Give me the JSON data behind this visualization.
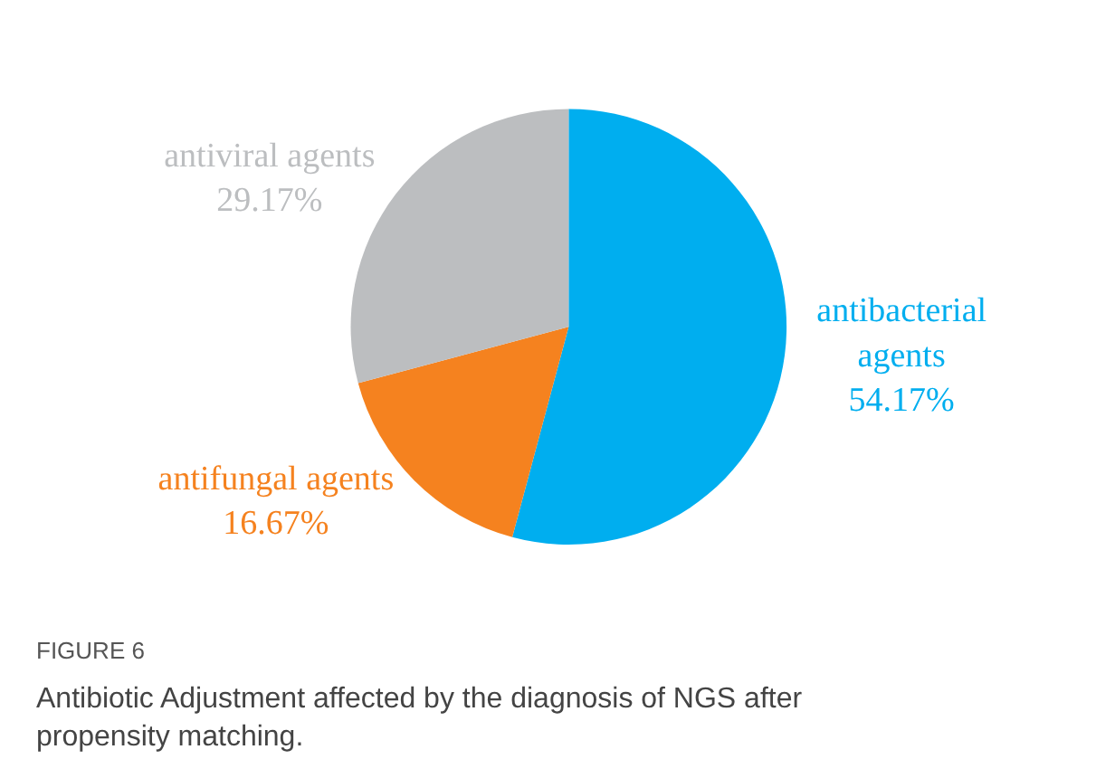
{
  "chart_data": {
    "type": "pie",
    "categories": [
      "antibacterial agents",
      "antifungal agents",
      "antiviral agents"
    ],
    "values": [
      54.17,
      16.67,
      29.17
    ],
    "value_labels": [
      "54.17%",
      "16.67%",
      "29.17%"
    ],
    "colors": [
      "#00aeef",
      "#f5821f",
      "#bcbec0"
    ],
    "annotations": [
      "FIGURE 6",
      "Antibiotic Adjustment affected by the diagnosis of NGS after propensity matching."
    ]
  }
}
